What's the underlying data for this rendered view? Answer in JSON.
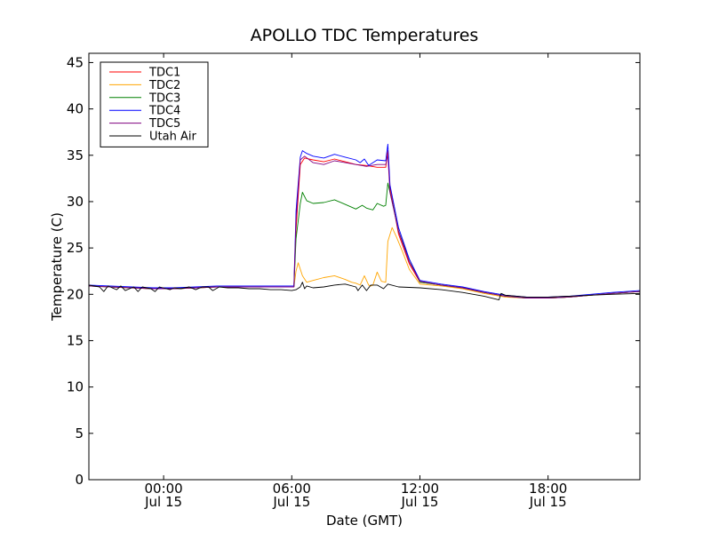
{
  "chart_data": {
    "type": "line",
    "title": "APOLLO TDC Temperatures",
    "xlabel": "Date (GMT)",
    "ylabel": "Temperature (C)",
    "x_unit": "hours since Jul 15 00:00 GMT",
    "xlim": [
      -3.5,
      22.3
    ],
    "ylim": [
      0,
      46
    ],
    "yticks": [
      0,
      5,
      10,
      15,
      20,
      25,
      30,
      35,
      40,
      45
    ],
    "xticks": [
      {
        "value": 0,
        "time": "00:00",
        "date": "Jul 15"
      },
      {
        "value": 6,
        "time": "06:00",
        "date": "Jul 15"
      },
      {
        "value": 12,
        "time": "12:00",
        "date": "Jul 15"
      },
      {
        "value": 18,
        "time": "18:00",
        "date": "Jul 15"
      }
    ],
    "legend_position": "top-left",
    "grid": false,
    "series": [
      {
        "name": "TDC1",
        "color": "#ff0000",
        "x": [
          -3.5,
          -2.5,
          -1.5,
          -0.5,
          0.5,
          1.5,
          2.5,
          3.5,
          4.5,
          5.5,
          6.1,
          6.2,
          6.4,
          6.6,
          7.0,
          7.5,
          8.0,
          8.5,
          9.0,
          9.5,
          10.0,
          10.4,
          10.5,
          10.6,
          11.0,
          11.5,
          12.0,
          13.0,
          14.0,
          15.0,
          16.0,
          17.0,
          18.0,
          19.0,
          20.0,
          21.0,
          22.3
        ],
        "values": [
          20.9,
          20.8,
          20.7,
          20.6,
          20.6,
          20.7,
          20.8,
          20.8,
          20.8,
          20.8,
          20.8,
          27.0,
          34.0,
          34.7,
          34.5,
          34.3,
          34.6,
          34.3,
          34.0,
          33.9,
          33.7,
          33.7,
          35.5,
          31.5,
          26.5,
          23.3,
          21.3,
          21.0,
          20.7,
          20.2,
          19.8,
          19.6,
          19.6,
          19.7,
          19.9,
          20.1,
          20.3
        ]
      },
      {
        "name": "TDC2",
        "color": "#ffa500",
        "x": [
          -3.5,
          -2.5,
          -1.5,
          -0.5,
          0.5,
          1.5,
          2.5,
          3.5,
          4.5,
          5.5,
          6.1,
          6.2,
          6.3,
          6.5,
          6.7,
          7.0,
          7.5,
          8.0,
          8.5,
          8.8,
          9.0,
          9.2,
          9.4,
          9.6,
          9.7,
          9.8,
          10.0,
          10.2,
          10.4,
          10.5,
          10.7,
          10.9,
          11.2,
          11.5,
          12.0,
          13.0,
          14.0,
          15.0,
          16.0,
          17.0,
          18.0,
          19.0,
          20.0,
          21.0,
          22.3
        ],
        "values": [
          20.9,
          20.8,
          20.7,
          20.6,
          20.6,
          20.7,
          20.8,
          20.8,
          20.8,
          20.8,
          20.8,
          22.5,
          23.4,
          22.0,
          21.3,
          21.5,
          21.8,
          22.0,
          21.6,
          21.3,
          21.2,
          21.0,
          22.0,
          21.0,
          20.9,
          21.0,
          22.4,
          21.4,
          21.3,
          25.7,
          27.2,
          26.2,
          24.5,
          22.7,
          21.1,
          20.9,
          20.6,
          20.1,
          19.7,
          19.6,
          19.6,
          19.7,
          19.9,
          20.1,
          20.3
        ]
      },
      {
        "name": "TDC3",
        "color": "#008000",
        "x": [
          -3.5,
          -2.5,
          -1.5,
          -0.5,
          0.5,
          1.5,
          2.5,
          3.5,
          4.5,
          5.5,
          6.1,
          6.2,
          6.4,
          6.5,
          6.7,
          7.0,
          7.5,
          8.0,
          8.5,
          9.0,
          9.3,
          9.5,
          9.8,
          10.0,
          10.3,
          10.4,
          10.5,
          10.6,
          10.8,
          11.0,
          11.5,
          12.0,
          13.0,
          14.0,
          15.0,
          16.0,
          17.0,
          18.0,
          19.0,
          20.0,
          21.0,
          22.3
        ],
        "values": [
          20.9,
          20.8,
          20.7,
          20.6,
          20.6,
          20.7,
          20.8,
          20.8,
          20.8,
          20.8,
          20.8,
          26.0,
          29.8,
          31.0,
          30.1,
          29.8,
          29.9,
          30.2,
          29.7,
          29.2,
          29.6,
          29.3,
          29.1,
          29.8,
          29.5,
          29.6,
          32.0,
          31.0,
          29.0,
          26.8,
          23.8,
          21.3,
          21.0,
          20.7,
          20.2,
          19.8,
          19.6,
          19.6,
          19.7,
          19.9,
          20.1,
          20.3
        ]
      },
      {
        "name": "TDC4",
        "color": "#0000ff",
        "x": [
          -3.5,
          -2.5,
          -1.5,
          -0.5,
          0.5,
          1.5,
          2.5,
          3.5,
          4.5,
          5.5,
          6.1,
          6.2,
          6.4,
          6.5,
          6.7,
          7.0,
          7.5,
          8.0,
          8.5,
          9.0,
          9.2,
          9.4,
          9.6,
          9.8,
          10.0,
          10.4,
          10.5,
          10.6,
          11.0,
          11.5,
          12.0,
          13.0,
          14.0,
          15.0,
          16.0,
          17.0,
          18.0,
          19.0,
          20.0,
          21.0,
          22.3
        ],
        "values": [
          21.0,
          20.9,
          20.8,
          20.7,
          20.7,
          20.8,
          20.9,
          20.9,
          20.9,
          20.9,
          20.9,
          29.0,
          34.8,
          35.5,
          35.2,
          34.9,
          34.7,
          35.1,
          34.8,
          34.5,
          34.2,
          34.6,
          33.9,
          34.2,
          34.5,
          34.4,
          36.2,
          31.8,
          27.2,
          23.8,
          21.5,
          21.1,
          20.8,
          20.3,
          19.9,
          19.7,
          19.7,
          19.8,
          20.0,
          20.2,
          20.4
        ]
      },
      {
        "name": "TDC5",
        "color": "#800080",
        "x": [
          -3.5,
          -2.5,
          -1.5,
          -0.5,
          0.5,
          1.5,
          2.5,
          3.5,
          4.5,
          5.5,
          6.1,
          6.2,
          6.4,
          6.6,
          7.0,
          7.5,
          8.0,
          8.5,
          9.0,
          9.5,
          10.0,
          10.4,
          10.5,
          10.6,
          11.0,
          11.5,
          12.0,
          13.0,
          14.0,
          15.0,
          16.0,
          17.0,
          18.0,
          19.0,
          20.0,
          21.0,
          22.3
        ],
        "values": [
          20.9,
          20.8,
          20.7,
          20.6,
          20.6,
          20.7,
          20.8,
          20.8,
          20.8,
          20.8,
          20.8,
          28.0,
          34.5,
          34.9,
          34.2,
          34.0,
          34.4,
          34.2,
          34.0,
          33.8,
          34.0,
          34.0,
          35.0,
          31.0,
          26.8,
          23.5,
          21.4,
          21.0,
          20.7,
          20.2,
          19.8,
          19.6,
          19.6,
          19.7,
          19.9,
          20.1,
          20.3
        ]
      },
      {
        "name": "Utah Air",
        "color": "#000000",
        "x": [
          -3.5,
          -3.0,
          -2.8,
          -2.6,
          -2.2,
          -2.0,
          -1.8,
          -1.4,
          -1.2,
          -1.0,
          -0.6,
          -0.4,
          -0.2,
          0.3,
          0.5,
          0.8,
          1.2,
          1.5,
          1.8,
          2.1,
          2.3,
          2.6,
          3.0,
          3.5,
          4.0,
          4.5,
          5.0,
          5.5,
          6.0,
          6.2,
          6.4,
          6.5,
          6.6,
          6.7,
          7.0,
          7.5,
          8.0,
          8.5,
          9.0,
          9.1,
          9.3,
          9.5,
          9.7,
          10.0,
          10.3,
          10.5,
          11.0,
          12.0,
          13.0,
          14.0,
          15.0,
          15.7,
          15.8,
          16.0,
          17.0,
          18.0,
          19.0,
          20.0,
          21.0,
          22.3
        ],
        "values": [
          21.0,
          20.8,
          20.3,
          20.9,
          20.5,
          20.9,
          20.4,
          20.8,
          20.3,
          20.8,
          20.6,
          20.3,
          20.8,
          20.5,
          20.7,
          20.6,
          20.8,
          20.5,
          20.8,
          20.8,
          20.4,
          20.8,
          20.7,
          20.7,
          20.6,
          20.6,
          20.5,
          20.5,
          20.4,
          20.5,
          20.8,
          21.3,
          20.6,
          20.9,
          20.7,
          20.8,
          21.0,
          21.1,
          20.8,
          20.4,
          21.0,
          20.4,
          21.0,
          21.0,
          20.6,
          21.1,
          20.8,
          20.7,
          20.5,
          20.2,
          19.8,
          19.4,
          20.1,
          19.9,
          19.7,
          19.7,
          19.8,
          19.9,
          20.0,
          20.1
        ]
      }
    ]
  }
}
